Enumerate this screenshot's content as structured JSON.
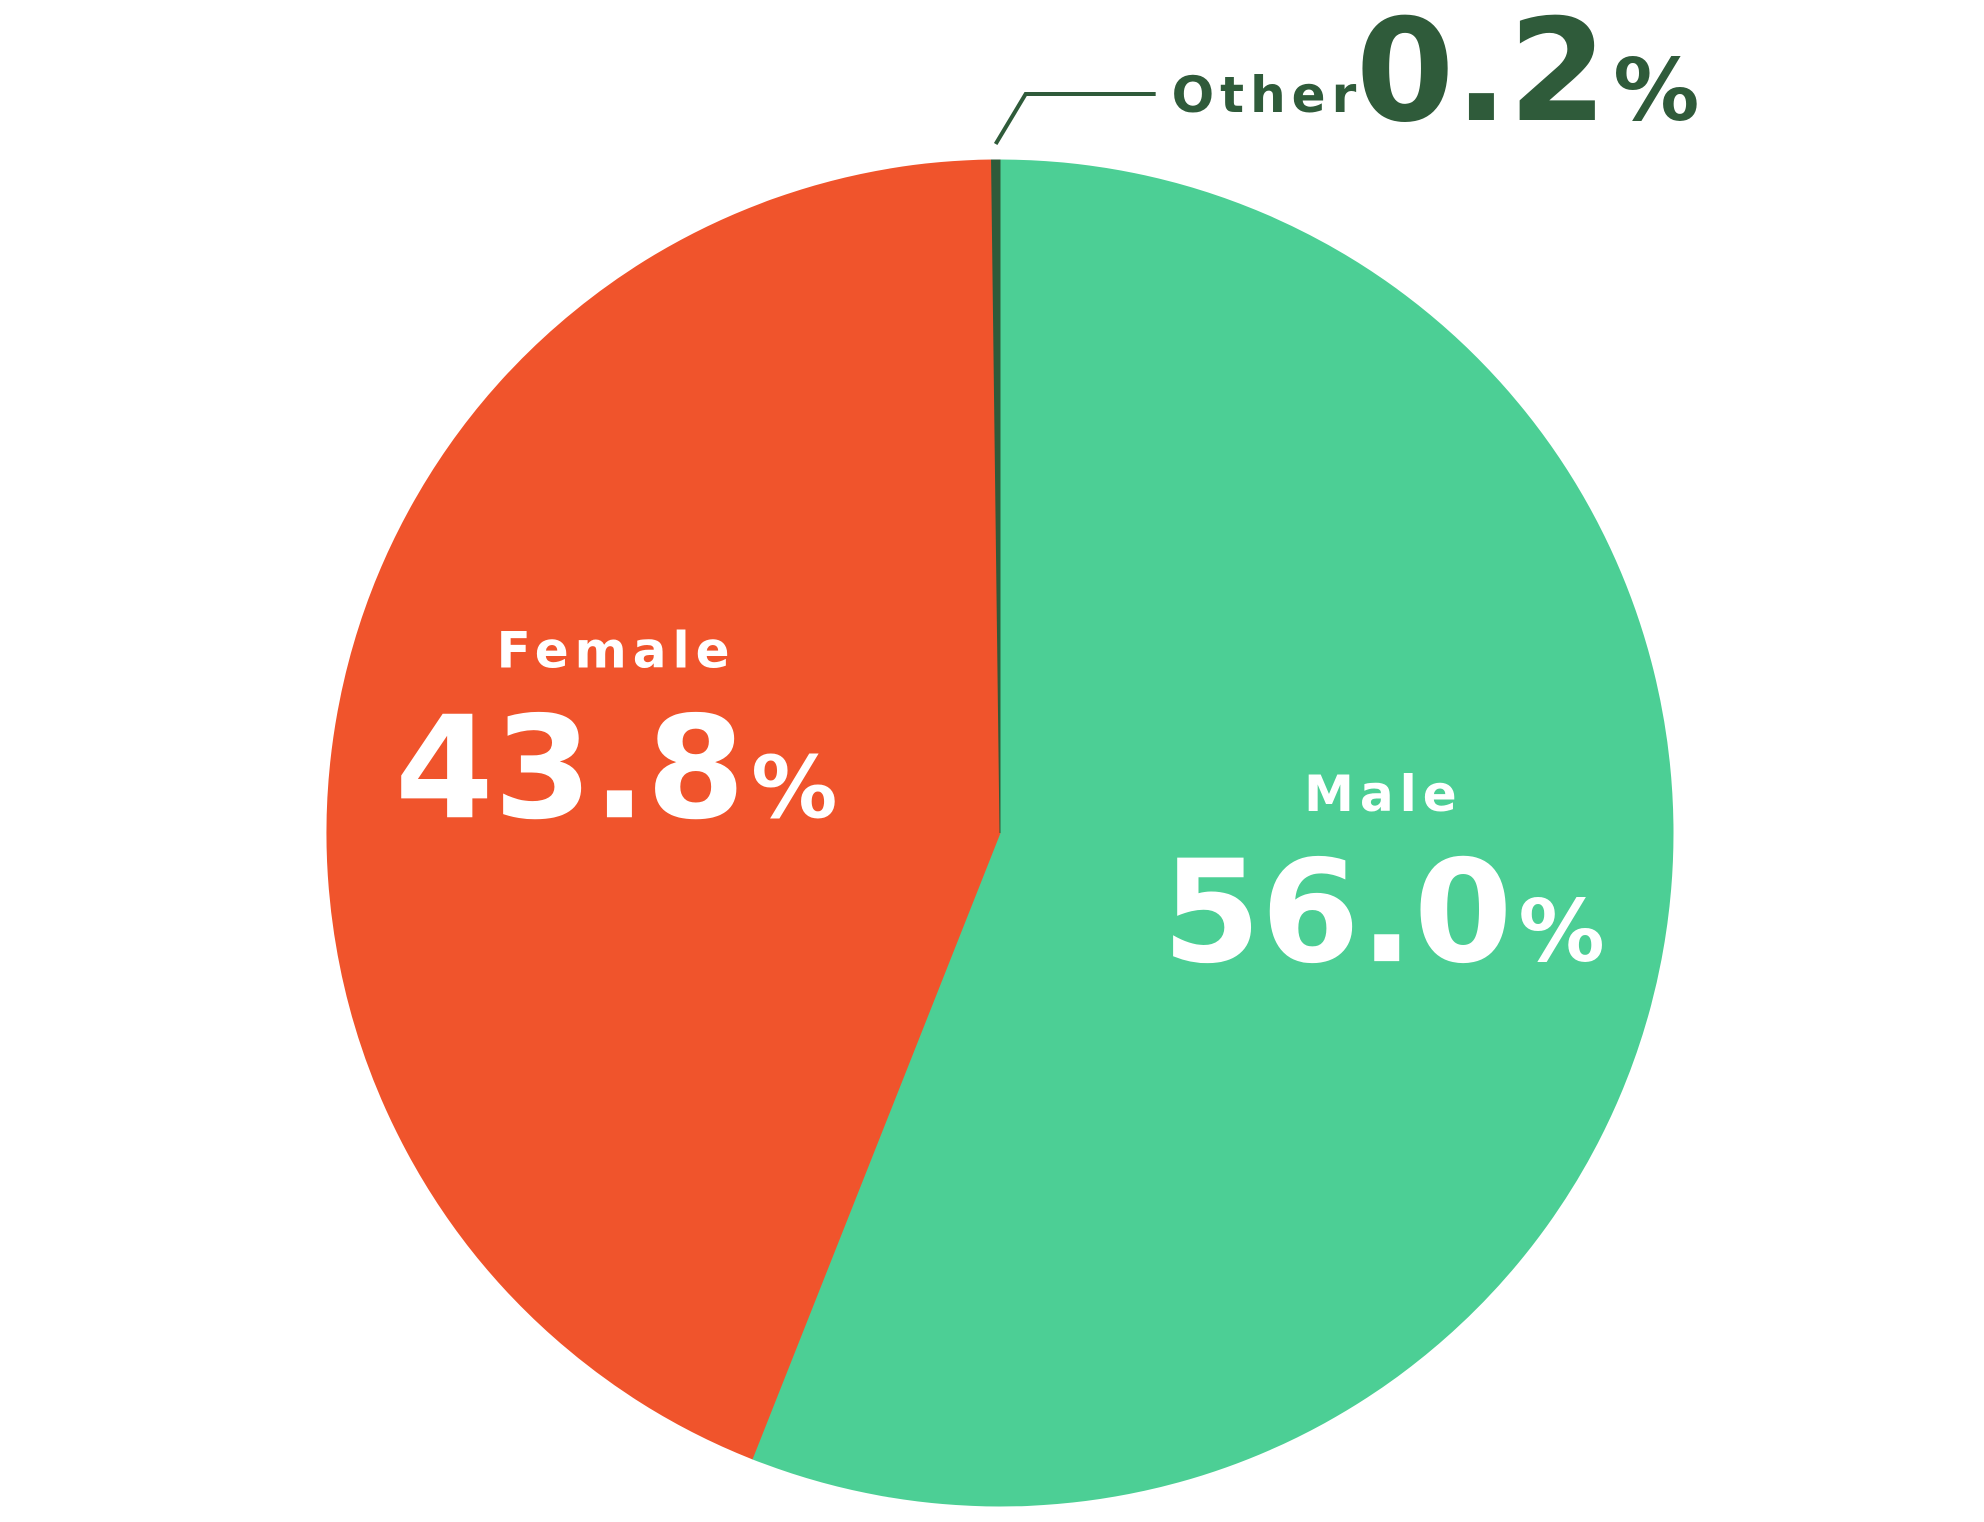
{
  "chart_data": {
    "type": "pie",
    "title": "",
    "unit": "%",
    "slices": [
      {
        "label": "Male",
        "value": 56.0,
        "value_text": "56.0",
        "color": "#4ccf95"
      },
      {
        "label": "Female",
        "value": 43.8,
        "value_text": "43.8",
        "color": "#f0542c"
      },
      {
        "label": "Other",
        "value": 0.2,
        "value_text": "0.2",
        "color": "#2f5b3a"
      }
    ],
    "start_position": "top",
    "direction": "clockwise",
    "legend": "none"
  }
}
